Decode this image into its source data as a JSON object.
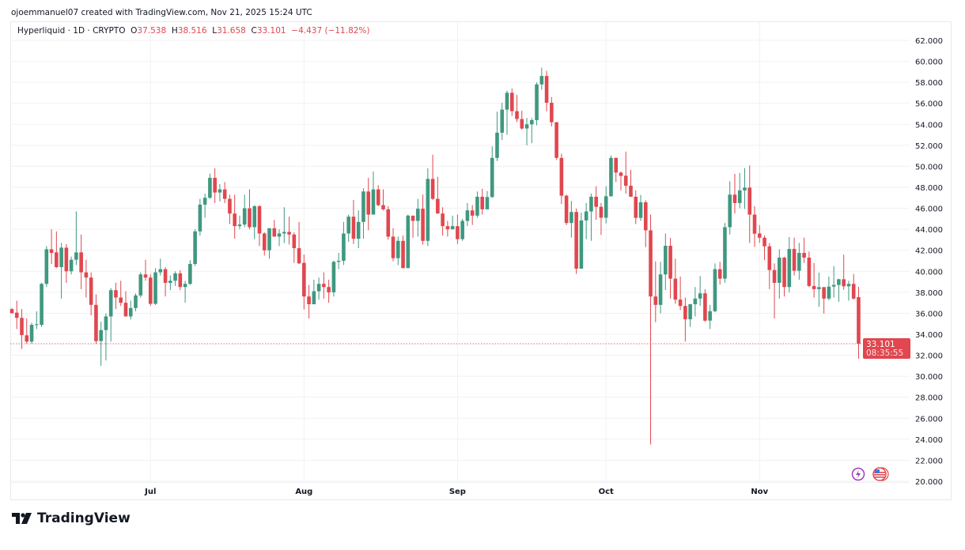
{
  "attribution": "ojoemmanuel07 created with TradingView.com, Nov 21, 2025 15:24 UTC",
  "legend": {
    "symbol": "Hyperliquid · 1D · CRYPTO",
    "o_label": "O",
    "o": "37.538",
    "h_label": "H",
    "h": "38.516",
    "l_label": "L",
    "l": "31.658",
    "c_label": "C",
    "c": "33.101",
    "change": "−4.437 (−11.82%)"
  },
  "last_price": {
    "price": "33.101",
    "countdown": "08:35:55"
  },
  "logo_text": "TradingView",
  "icons": [
    "lightning-icon",
    "us-flag-icon"
  ],
  "colors": {
    "up": "#3f987f",
    "down": "#e0474f",
    "grid": "#f0f1f3",
    "text": "#131722"
  },
  "chart_data": {
    "type": "candlestick",
    "title": "Hyperliquid · 1D · CRYPTO",
    "ylim": [
      20,
      62
    ],
    "y_ticks": [
      "20.000",
      "22.000",
      "24.000",
      "26.000",
      "28.000",
      "30.000",
      "32.000",
      "34.000",
      "36.000",
      "38.000",
      "40.000",
      "42.000",
      "44.000",
      "46.000",
      "48.000",
      "50.000",
      "52.000",
      "54.000",
      "56.000",
      "58.000",
      "60.000",
      "62.000"
    ],
    "x_ticks": [
      {
        "label": "Jul",
        "index": 28
      },
      {
        "label": "Aug",
        "index": 59
      },
      {
        "label": "Sep",
        "index": 90
      },
      {
        "label": "Oct",
        "index": 120
      },
      {
        "label": "Nov",
        "index": 151
      }
    ],
    "grid": true,
    "ohlc": [
      [
        36.4,
        36.5,
        36.0,
        36.0
      ],
      [
        36.06,
        37.2,
        34.5,
        35.56
      ],
      [
        35.56,
        36.4,
        32.6,
        33.92
      ],
      [
        33.9,
        35.5,
        33.1,
        33.3
      ],
      [
        33.3,
        35.1,
        33.1,
        34.9
      ],
      [
        34.9,
        36.2,
        34.5,
        34.95
      ],
      [
        34.9,
        38.9,
        34.7,
        38.8
      ],
      [
        38.8,
        42.4,
        38.5,
        42.1
      ],
      [
        42.1,
        44.0,
        40.7,
        41.75
      ],
      [
        41.8,
        43.8,
        40.3,
        40.4
      ],
      [
        40.4,
        42.7,
        37.4,
        42.25
      ],
      [
        42.25,
        42.6,
        38.9,
        40.0
      ],
      [
        40.0,
        41.4,
        39.7,
        41.1
      ],
      [
        41.1,
        45.7,
        40.6,
        41.8
      ],
      [
        41.8,
        43.5,
        38.3,
        39.9
      ],
      [
        39.9,
        41.1,
        37.5,
        39.4
      ],
      [
        39.4,
        39.9,
        35.8,
        36.8
      ],
      [
        36.8,
        37.8,
        33.1,
        33.35
      ],
      [
        33.35,
        35.2,
        31.0,
        34.4
      ],
      [
        34.4,
        36.0,
        31.5,
        35.7
      ],
      [
        35.7,
        38.4,
        33.3,
        38.2
      ],
      [
        38.2,
        38.9,
        36.4,
        37.5
      ],
      [
        37.5,
        39.1,
        36.7,
        37.0
      ],
      [
        37.0,
        38.1,
        35.7,
        35.7
      ],
      [
        35.7,
        37.2,
        35.4,
        36.5
      ],
      [
        36.5,
        37.9,
        36.2,
        37.7
      ],
      [
        37.7,
        39.9,
        37.5,
        39.7
      ],
      [
        39.7,
        41.1,
        39.1,
        39.4
      ],
      [
        39.4,
        39.7,
        36.7,
        36.9
      ],
      [
        36.9,
        40.3,
        36.8,
        39.9
      ],
      [
        39.9,
        41.2,
        39.6,
        40.2
      ],
      [
        40.2,
        40.4,
        37.6,
        38.9
      ],
      [
        38.9,
        39.6,
        38.2,
        39.1
      ],
      [
        39.1,
        40.0,
        38.6,
        39.8
      ],
      [
        39.8,
        40.1,
        38.2,
        38.5
      ],
      [
        38.5,
        39.1,
        37.0,
        38.8
      ],
      [
        38.8,
        41.05,
        38.7,
        40.7
      ],
      [
        40.7,
        44.0,
        40.5,
        43.8
      ],
      [
        43.8,
        46.9,
        43.4,
        46.35
      ],
      [
        46.35,
        47.4,
        45.1,
        47.0
      ],
      [
        47.0,
        49.3,
        46.9,
        48.9
      ],
      [
        48.9,
        49.8,
        46.5,
        47.5
      ],
      [
        47.5,
        48.3,
        46.65,
        47.8
      ],
      [
        47.8,
        48.5,
        46.5,
        46.9
      ],
      [
        46.9,
        47.3,
        44.5,
        45.5
      ],
      [
        45.5,
        47.3,
        43.1,
        44.3
      ],
      [
        44.3,
        45.3,
        44.0,
        44.45
      ],
      [
        44.45,
        47.3,
        44.2,
        46.0
      ],
      [
        46.0,
        47.8,
        44.0,
        44.2
      ],
      [
        44.2,
        46.3,
        43.06,
        46.2
      ],
      [
        46.2,
        46.3,
        42.4,
        43.6
      ],
      [
        43.6,
        43.7,
        41.5,
        42.0
      ],
      [
        42.0,
        44.1,
        41.2,
        44.1
      ],
      [
        44.1,
        44.9,
        43.3,
        43.3
      ],
      [
        43.3,
        44.0,
        42.4,
        43.6
      ],
      [
        43.6,
        46.1,
        42.7,
        43.75
      ],
      [
        43.75,
        45.2,
        42.55,
        43.5
      ],
      [
        43.5,
        43.7,
        40.8,
        42.2
      ],
      [
        42.2,
        44.7,
        40.7,
        40.75
      ],
      [
        40.8,
        41.6,
        36.36,
        37.6
      ],
      [
        37.6,
        38.7,
        35.5,
        36.86
      ],
      [
        36.86,
        39.2,
        36.86,
        38.1
      ],
      [
        38.1,
        39.4,
        37.3,
        38.8
      ],
      [
        38.8,
        39.9,
        37.4,
        38.5
      ],
      [
        38.5,
        39.2,
        37.0,
        38.0
      ],
      [
        38.0,
        41.0,
        37.6,
        40.9
      ],
      [
        40.9,
        41.75,
        40.2,
        41.0
      ],
      [
        41.0,
        44.7,
        40.6,
        43.6
      ],
      [
        43.6,
        45.4,
        42.8,
        45.2
      ],
      [
        45.2,
        46.8,
        42.6,
        43.1
      ],
      [
        43.1,
        45.8,
        42.2,
        44.7
      ],
      [
        44.7,
        47.9,
        43.1,
        47.6
      ],
      [
        47.6,
        48.9,
        43.9,
        45.4
      ],
      [
        45.4,
        49.5,
        45.4,
        47.8
      ],
      [
        47.8,
        48.2,
        46.2,
        46.3
      ],
      [
        46.3,
        47.8,
        45.8,
        45.9
      ],
      [
        45.9,
        46.2,
        43.0,
        43.3
      ],
      [
        43.3,
        44.1,
        40.95,
        41.25
      ],
      [
        41.25,
        43.3,
        40.6,
        42.9
      ],
      [
        42.9,
        43.4,
        40.3,
        40.3
      ],
      [
        40.3,
        45.4,
        40.3,
        45.3
      ],
      [
        45.3,
        45.3,
        43.2,
        44.8
      ],
      [
        44.8,
        46.9,
        43.3,
        45.96
      ],
      [
        45.96,
        47.3,
        42.55,
        42.9
      ],
      [
        42.9,
        49.8,
        42.4,
        48.8
      ],
      [
        48.8,
        51.1,
        46.8,
        46.9
      ],
      [
        46.9,
        49.0,
        45.5,
        45.5
      ],
      [
        45.5,
        46.1,
        43.4,
        44.3
      ],
      [
        44.3,
        44.8,
        43.3,
        44.0
      ],
      [
        44.0,
        45.3,
        44.0,
        44.3
      ],
      [
        44.3,
        45.4,
        42.6,
        43.06
      ],
      [
        43.06,
        45.0,
        42.9,
        44.8
      ],
      [
        44.8,
        46.5,
        44.3,
        45.8
      ],
      [
        45.8,
        46.3,
        44.4,
        45.3
      ],
      [
        45.3,
        47.6,
        45.1,
        47.1
      ],
      [
        47.1,
        47.85,
        45.4,
        45.9
      ],
      [
        45.9,
        47.65,
        45.9,
        47.07
      ],
      [
        47.07,
        51.9,
        47.0,
        50.8
      ],
      [
        50.8,
        55.2,
        50.5,
        53.2
      ],
      [
        53.2,
        56.05,
        52.5,
        55.4
      ],
      [
        55.4,
        57.2,
        53.0,
        57.0
      ],
      [
        57.0,
        57.4,
        54.8,
        55.25
      ],
      [
        55.25,
        56.8,
        54.2,
        54.5
      ],
      [
        54.5,
        55.3,
        53.5,
        53.6
      ],
      [
        53.6,
        54.6,
        52.0,
        54.0
      ],
      [
        54.0,
        54.6,
        52.2,
        54.4
      ],
      [
        54.4,
        58.0,
        53.9,
        57.8
      ],
      [
        57.8,
        59.4,
        57.3,
        58.6
      ],
      [
        58.6,
        59.1,
        55.25,
        56.05
      ],
      [
        56.05,
        56.6,
        53.8,
        54.2
      ],
      [
        54.2,
        54.2,
        50.6,
        50.8
      ],
      [
        50.8,
        51.2,
        46.4,
        47.2
      ],
      [
        47.2,
        47.3,
        44.4,
        44.6
      ],
      [
        44.6,
        46.7,
        43.2,
        45.65
      ],
      [
        45.65,
        45.97,
        39.75,
        40.25
      ],
      [
        40.25,
        45.6,
        40.25,
        44.84
      ],
      [
        44.84,
        46.5,
        43.06,
        45.7
      ],
      [
        45.7,
        47.4,
        42.9,
        47.1
      ],
      [
        47.1,
        48.1,
        44.9,
        46.14
      ],
      [
        46.14,
        46.5,
        43.46,
        45.1
      ],
      [
        45.1,
        48.1,
        44.56,
        47.15
      ],
      [
        47.15,
        51.04,
        47.1,
        50.8
      ],
      [
        50.8,
        50.83,
        48.5,
        49.4
      ],
      [
        49.4,
        49.5,
        47.7,
        49.08
      ],
      [
        49.1,
        51.4,
        47.4,
        48.15
      ],
      [
        48.15,
        49.66,
        47.1,
        47.1
      ],
      [
        47.1,
        47.7,
        44.5,
        45.09
      ],
      [
        45.09,
        47.27,
        44.8,
        46.57
      ],
      [
        46.57,
        46.77,
        42.3,
        43.9
      ],
      [
        43.9,
        45.4,
        23.5,
        37.6
      ],
      [
        37.6,
        40.95,
        35.15,
        36.8
      ],
      [
        36.8,
        40.9,
        35.99,
        39.7
      ],
      [
        39.7,
        43.6,
        38.2,
        42.43
      ],
      [
        42.43,
        43.18,
        37.4,
        39.3
      ],
      [
        39.3,
        41.2,
        36.9,
        37.3
      ],
      [
        37.3,
        39.5,
        36.3,
        36.7
      ],
      [
        36.7,
        37.5,
        33.3,
        35.43
      ],
      [
        35.43,
        36.9,
        34.7,
        36.86
      ],
      [
        36.86,
        38.5,
        35.7,
        37.4
      ],
      [
        37.4,
        39.55,
        36.7,
        37.9
      ],
      [
        37.9,
        38.3,
        35.18,
        35.3
      ],
      [
        35.3,
        36.8,
        34.5,
        36.2
      ],
      [
        36.2,
        40.75,
        36.1,
        40.2
      ],
      [
        40.2,
        40.9,
        38.74,
        39.3
      ],
      [
        39.3,
        44.6,
        38.9,
        44.2
      ],
      [
        44.2,
        48.58,
        43.5,
        47.3
      ],
      [
        47.3,
        49.28,
        45.5,
        46.5
      ],
      [
        46.5,
        49.35,
        46.0,
        47.7
      ],
      [
        47.7,
        49.83,
        45.94,
        47.97
      ],
      [
        47.97,
        50.08,
        42.7,
        45.4
      ],
      [
        45.4,
        46.2,
        42.33,
        43.58
      ],
      [
        43.6,
        44.39,
        42.7,
        43.2
      ],
      [
        43.2,
        43.4,
        41.05,
        42.38
      ],
      [
        42.38,
        42.7,
        38.3,
        40.12
      ],
      [
        40.12,
        40.75,
        35.5,
        38.9
      ],
      [
        38.9,
        42.1,
        37.4,
        41.3
      ],
      [
        41.3,
        41.38,
        37.6,
        38.5
      ],
      [
        38.5,
        43.26,
        37.99,
        42.13
      ],
      [
        42.13,
        43.2,
        39.6,
        40.05
      ],
      [
        40.05,
        42.7,
        39.2,
        41.75
      ],
      [
        41.75,
        43.2,
        40.8,
        41.3
      ],
      [
        41.3,
        41.88,
        38.49,
        38.6
      ],
      [
        38.6,
        40.8,
        37.5,
        38.3
      ],
      [
        38.3,
        39.87,
        36.61,
        38.49
      ],
      [
        38.49,
        38.5,
        35.98,
        37.4
      ],
      [
        37.4,
        39.5,
        37.24,
        38.54
      ],
      [
        38.54,
        40.5,
        37.5,
        38.7
      ],
      [
        38.7,
        39.3,
        37.1,
        39.24
      ],
      [
        39.24,
        41.58,
        38.24,
        38.57
      ],
      [
        38.57,
        39.1,
        37.2,
        38.8
      ],
      [
        38.8,
        39.75,
        37.3,
        37.4
      ],
      [
        37.538,
        38.516,
        31.658,
        33.101
      ]
    ]
  }
}
